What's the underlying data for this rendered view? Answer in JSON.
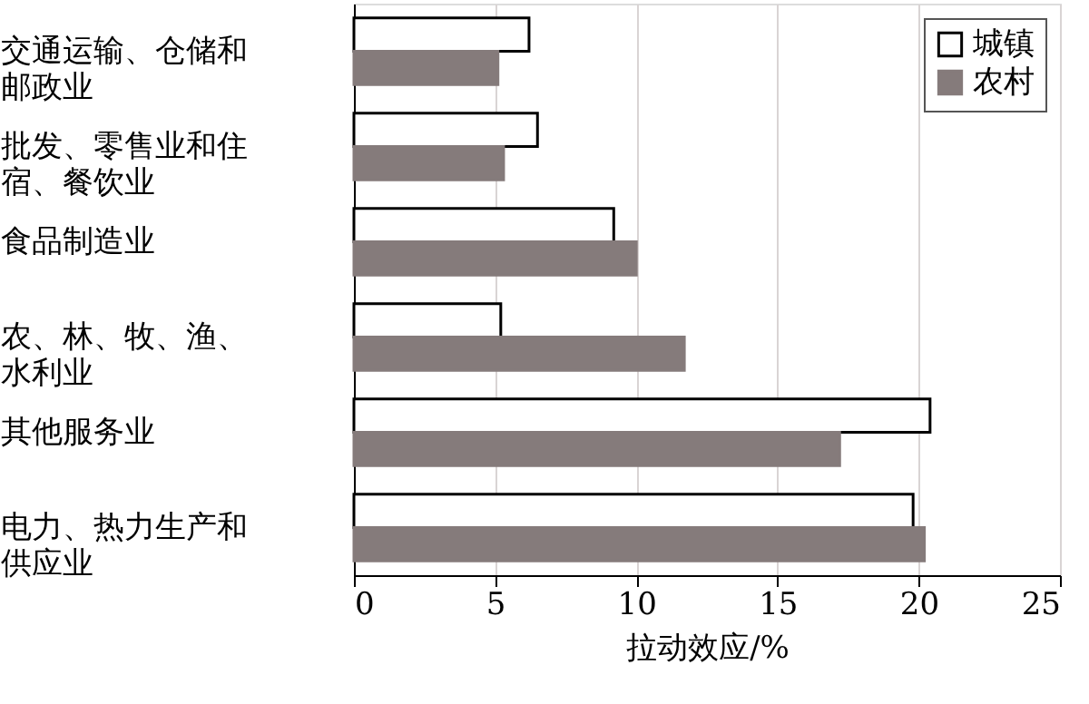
{
  "chart_data": {
    "type": "bar",
    "orientation": "horizontal",
    "xlabel": "拉动效应/%",
    "categories": [
      "交通运输、仓储和邮政业",
      "批发、零售业和住宿、餐饮业",
      "食品制造业",
      "农、林、牧、渔、水利业",
      "其他服务业",
      "电力、热力生产和供应业"
    ],
    "series": [
      {
        "name": "城镇",
        "color": "#ffffff",
        "values": [
          6.2,
          6.5,
          9.2,
          5.2,
          20.4,
          19.8
        ]
      },
      {
        "name": "农村",
        "color": "#857b7b",
        "values": [
          5.1,
          5.3,
          10.0,
          11.7,
          17.2,
          20.2
        ]
      }
    ],
    "xlim": [
      0,
      25
    ],
    "xticks": [
      0,
      5,
      10,
      15,
      20,
      25
    ],
    "grid": "x",
    "legend": "top right"
  }
}
